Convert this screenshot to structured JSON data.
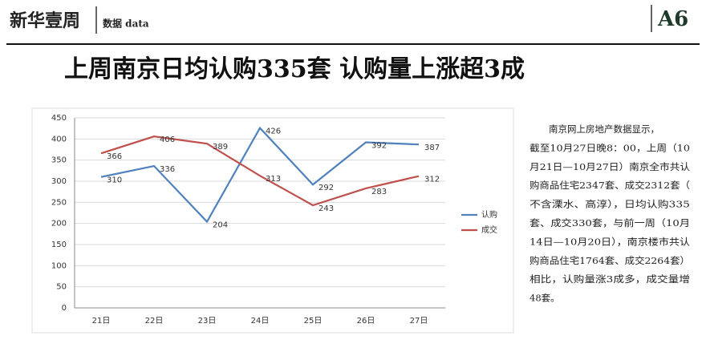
{
  "header": {
    "logo": "新华壹周",
    "section": "数据 data",
    "page": "A6"
  },
  "headline": "上周南京日均认购335套 认购量上涨超3成",
  "article": {
    "lines": [
      "南京网上房地产数据显示，",
      "截至10月27日晚8：00，上周（10",
      "月21日—10月27日）南京全市共认",
      "购商品住宅2347套、成交2312套（",
      "不含溧水、高淳），日均认购335",
      "套、成交330套，与前一周（10月",
      "14日—10月20日），南京楼市共认",
      "购商品住宅1764套、成交2264套）",
      "相比，认购量涨3成多，成交量增",
      "48套。"
    ]
  },
  "chart_data": {
    "type": "line",
    "categories": [
      "21日",
      "22日",
      "23日",
      "24日",
      "25日",
      "26日",
      "27日"
    ],
    "series": [
      {
        "name": "认购",
        "color": "#4f81bd",
        "values": [
          310,
          336,
          204,
          426,
          292,
          392,
          387
        ]
      },
      {
        "name": "成交",
        "color": "#c0504d",
        "values": [
          366,
          406,
          389,
          313,
          243,
          283,
          312
        ]
      }
    ],
    "ylim": [
      0,
      450
    ],
    "yticks": [
      0,
      50,
      100,
      150,
      200,
      250,
      300,
      350,
      400,
      450
    ],
    "grid": true,
    "legend": "right"
  }
}
